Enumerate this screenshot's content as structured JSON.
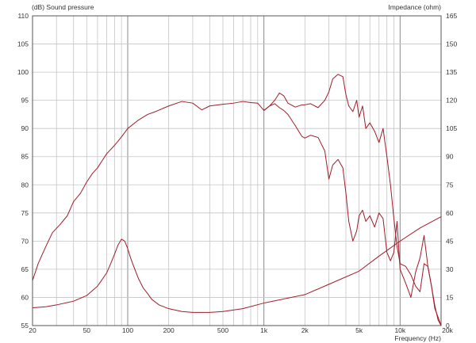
{
  "chart_data": {
    "type": "line",
    "left_axis_title": "(dB)  Sound pressure",
    "right_axis_title": "Impedance  (ohm)",
    "xlabel": "Frequency  (Hz)",
    "x_scale": "log",
    "xlim": [
      20,
      20000
    ],
    "ylim_left": [
      55,
      110
    ],
    "ylim_right": [
      0,
      165
    ],
    "grid": true,
    "x_ticks": [
      {
        "value": 20,
        "label": "20"
      },
      {
        "value": 50,
        "label": "50"
      },
      {
        "value": 100,
        "label": "100"
      },
      {
        "value": 200,
        "label": "200"
      },
      {
        "value": 500,
        "label": "500"
      },
      {
        "value": 1000,
        "label": "1k"
      },
      {
        "value": 2000,
        "label": "2k"
      },
      {
        "value": 5000,
        "label": "5k"
      },
      {
        "value": 10000,
        "label": "10k"
      },
      {
        "value": 20000,
        "label": "20k"
      }
    ],
    "y_ticks_left": [
      "55",
      "60",
      "65",
      "70",
      "75",
      "80",
      "85",
      "90",
      "95",
      "100",
      "105",
      "110"
    ],
    "y_ticks_right": [
      "0",
      "15",
      "30",
      "45",
      "60",
      "75",
      "90",
      "105",
      "120",
      "135",
      "150",
      "165"
    ],
    "colors": {
      "curve": "#a01c28",
      "grid": "#c4c4c4",
      "frame": "#555555"
    },
    "series": [
      {
        "axis": "left",
        "x": [
          20,
          22,
          25,
          28,
          32,
          36,
          40,
          45,
          50,
          55,
          60,
          70,
          80,
          90,
          100,
          120,
          140,
          160,
          200,
          250,
          300,
          350,
          400,
          500,
          600,
          700,
          800,
          900,
          1000,
          1100,
          1200,
          1300,
          1400,
          1500,
          1700,
          1900,
          2000,
          2200,
          2500,
          2800,
          3000,
          3200,
          3500,
          3800,
          4000,
          4200,
          4500,
          4800,
          5000,
          5300,
          5600,
          6000,
          6500,
          7000,
          7500,
          8000,
          8500,
          9000,
          9500,
          10000,
          11000,
          12000,
          13000,
          14000,
          15000,
          16000,
          17000,
          18000,
          19000,
          20000
        ],
        "y": [
          63,
          66,
          69,
          71.5,
          73,
          74.5,
          77,
          78.5,
          80.5,
          82,
          83,
          85.5,
          87,
          88.5,
          90,
          91.5,
          92.5,
          93,
          94,
          94.8,
          94.5,
          93.3,
          94,
          94.3,
          94.5,
          94.8,
          94.6,
          94.5,
          93.2,
          94,
          95,
          96.3,
          95.8,
          94.5,
          93.8,
          94.2,
          94.2,
          94.4,
          93.7,
          95,
          96.5,
          98.8,
          99.6,
          99.2,
          96,
          94,
          93,
          95,
          92,
          94,
          90,
          91,
          89.5,
          87.5,
          90,
          85,
          80,
          74,
          69,
          66,
          65.5,
          64,
          62,
          61,
          66,
          65.5,
          62,
          58,
          56.5,
          55
        ]
      },
      {
        "axis": "left",
        "x": [
          1000,
          1100,
          1200,
          1300,
          1400,
          1500,
          1700,
          1900,
          2000,
          2200,
          2500,
          2800,
          3000,
          3200,
          3500,
          3800,
          4000,
          4200,
          4500,
          4800,
          5000,
          5300,
          5600,
          6000,
          6500,
          7000,
          7500,
          8000,
          8500,
          9000,
          9500,
          10000,
          11000,
          12000,
          13000,
          14000,
          15000,
          16000,
          17000,
          18000,
          19000,
          20000
        ],
        "y": [
          93.2,
          94,
          94.4,
          93.7,
          93.2,
          92.5,
          90.5,
          88.6,
          88.3,
          88.8,
          88.4,
          86,
          81,
          83.5,
          84.5,
          83,
          78.5,
          73.5,
          70,
          71.8,
          74.5,
          75.5,
          73.5,
          74.5,
          72.5,
          75,
          74,
          68,
          66.5,
          68,
          73.5,
          65,
          62.5,
          60,
          64.5,
          67,
          71,
          65.5,
          62,
          58.5,
          56,
          55
        ]
      },
      {
        "axis": "right",
        "x": [
          20,
          25,
          30,
          40,
          50,
          60,
          70,
          75,
          80,
          85,
          90,
          95,
          100,
          105,
          110,
          120,
          130,
          140,
          150,
          170,
          200,
          250,
          300,
          400,
          500,
          700,
          1000,
          2000,
          3000,
          5000,
          7000,
          10000,
          14000,
          20000
        ],
        "y": [
          9.5,
          10,
          11,
          13,
          16,
          21,
          28,
          33,
          38,
          43,
          46,
          45,
          41,
          36,
          32,
          25,
          20,
          17,
          14,
          11,
          9,
          7.5,
          7,
          7,
          7.5,
          9,
          12,
          16.5,
          22,
          29,
          37,
          45,
          52,
          58
        ]
      }
    ]
  }
}
